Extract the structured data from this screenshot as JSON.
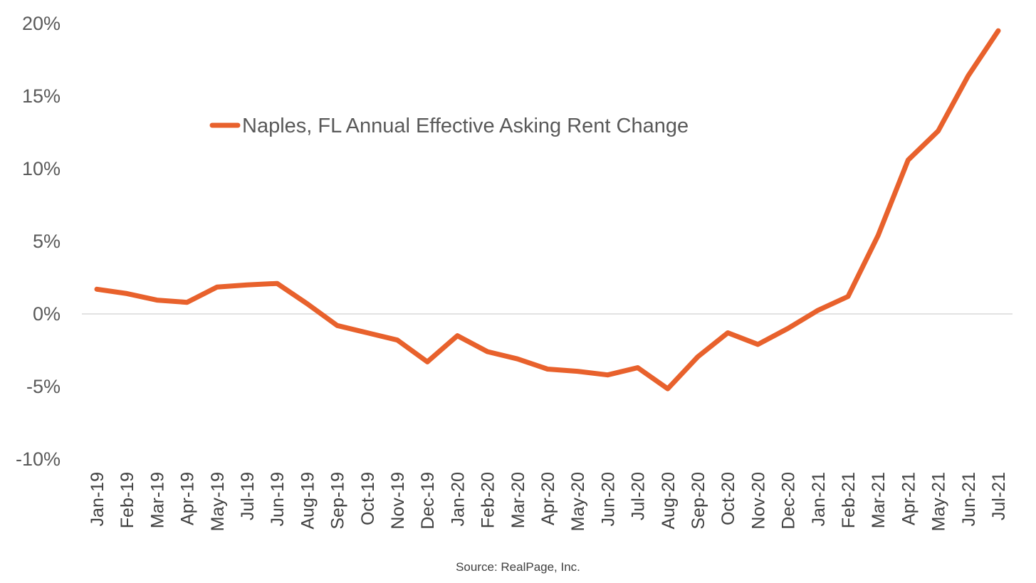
{
  "chart_data": {
    "type": "line",
    "categories": [
      "Jan-19",
      "Feb-19",
      "Mar-19",
      "Apr-19",
      "May-19",
      "Jul-19",
      "Jun-19",
      "Aug-19",
      "Sep-19",
      "Oct-19",
      "Nov-19",
      "Dec-19",
      "Jan-20",
      "Feb-20",
      "Mar-20",
      "Apr-20",
      "May-20",
      "Jun-20",
      "Jul-20",
      "Aug-20",
      "Sep-20",
      "Oct-20",
      "Nov-20",
      "Dec-20",
      "Jan-21",
      "Feb-21",
      "Mar-21",
      "Apr-21",
      "May-21",
      "Jun-21",
      "Jul-21"
    ],
    "series": [
      {
        "name": "Naples, FL Annual Effective Asking Rent Change",
        "color": "#E8612C",
        "values": [
          1.7,
          1.4,
          0.95,
          0.8,
          1.85,
          2.0,
          2.1,
          0.7,
          -0.8,
          -1.3,
          -1.8,
          -3.3,
          -1.5,
          -2.6,
          -3.1,
          -3.8,
          -3.95,
          -4.2,
          -3.7,
          -5.15,
          -2.95,
          -1.3,
          -2.1,
          -1.0,
          0.25,
          1.2,
          5.4,
          10.6,
          12.6,
          16.4,
          19.5
        ]
      }
    ],
    "yticks": [
      "20%",
      "15%",
      "10%",
      "5%",
      "0%",
      "-5%",
      "-10%"
    ],
    "ylim": [
      -10,
      20
    ],
    "legend_position": "top-center",
    "grid": false
  },
  "source_text": "Source: RealPage, Inc."
}
